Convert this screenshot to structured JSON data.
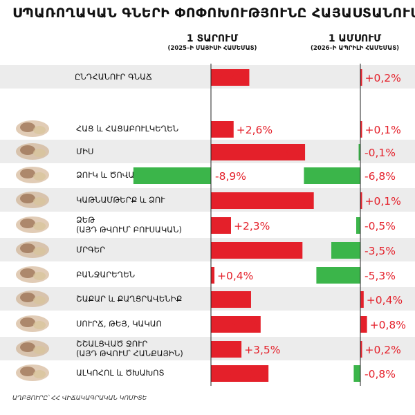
{
  "title": "ՍՊԱՌՈՂԱԿԱՆ ԳՆԵՐԻ ՓՈՓՈԽՈՒԹՅՈՒՆԸ ՀԱՅԱՍՏԱՆՈՒՄ",
  "source": "ԱՂԲՅՈՒՐԸ՝ ՀՀ ՎԻՃԱԿԱԳՐԱԿԱՆ ԿՈՄԻՏԵ",
  "colors": {
    "positive": "#e4202a",
    "negative": "#3bb54a",
    "stripe": "#ececec"
  },
  "chart_data": {
    "type": "bar",
    "categories": [
      "ԸՆԴՀԱՆՈՒՐ ԳՆԱՃ",
      "ՀԱՑ և ՀԱՑԱԲՈՒԼԿԵՂԵՆ",
      "ՄԻՍ",
      "ՁՈՒԿ և ԾՈՎԱՄԹԵՐՔ",
      "ԿԱԹՆԱՄԹԵՐՔ և ՁՈՒ",
      "ՁԵԹ (ԱՅԴ ԹՎՈՒՄ՝ ԲՈՒՍԱԿԱՆ)",
      "ՄՐԳԵՐ",
      "ԲԱՆՋԱՐԵՂԵՆ",
      "ՇԱՔԱՐ և ՔԱՂՑՐԱՎԵՆԻՔ",
      "ՍՈՒՐՃ, ԹԵՅ, ԿԱԿԱՈ",
      "ՇՇԱԼՑՎԱԾ ՋՈՒՐ (ԱՅԴ ԹՎՈՒՄ՝ ՀԱՆՔԱՅԻՆ)",
      "ԱԼԿՈՀՈԼ և ԾԽԱԽՈՏ"
    ],
    "series": [
      {
        "name": "1 ՏԱՐՈՒՄ",
        "subtitle": "(2025–Ի ՄԱՅԻՍԻ ՀԱՄԵՄԱՏ)",
        "values": [
          4.4,
          2.6,
          10.8,
          -8.9,
          11.8,
          2.3,
          10.5,
          0.4,
          4.6,
          5.7,
          3.5,
          6.6
        ],
        "labels": [
          "+4,4%",
          "+2,6%",
          "+10,8%",
          "-8,9%",
          "+11,8%",
          "+2,3%",
          "+10,5%",
          "+0,4%",
          "+4,6%",
          "+5,7%",
          "+3,5%",
          "+6,6%"
        ]
      },
      {
        "name": "1 ԱՄՍՈՒՄ",
        "subtitle": "(2026–Ի ԱՊՐԻԼԻ ՀԱՄԵՄԱՏ)",
        "values": [
          0.2,
          0.1,
          -0.1,
          -6.8,
          0.1,
          -0.5,
          -3.5,
          -5.3,
          0.4,
          0.8,
          0.2,
          -0.8
        ],
        "labels": [
          "+0,2%",
          "+0,1%",
          "-0,1%",
          "-6,8%",
          "+0,1%",
          "-0,5%",
          "-3,5%",
          "-5,3%",
          "+0,4%",
          "+0,8%",
          "+0,2%",
          "-0,8%"
        ]
      }
    ],
    "xlim_year": [
      -8.9,
      12
    ],
    "xlim_month": [
      -7.5,
      7
    ],
    "grid": false
  }
}
